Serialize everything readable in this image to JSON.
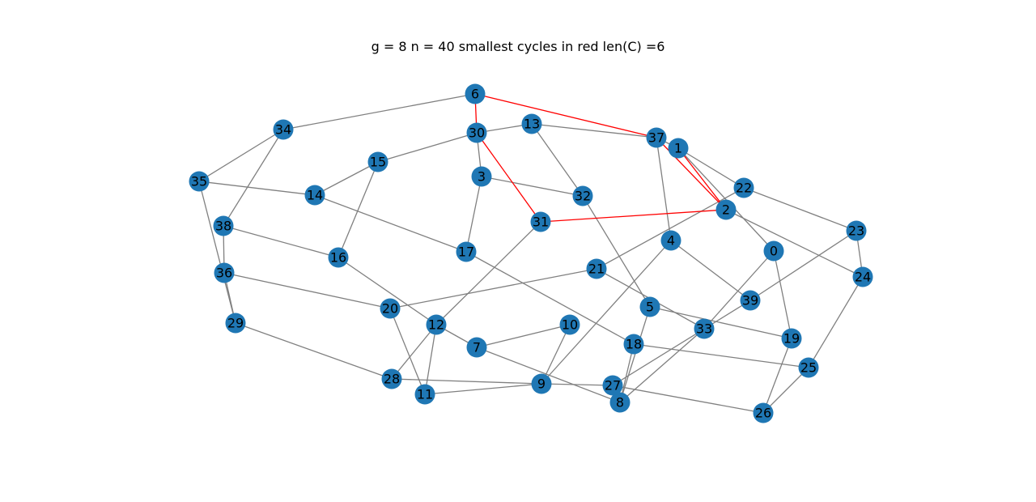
{
  "title": "g = 8 n = 40 smallest cycles in red len(C) =6",
  "colors": {
    "node": "#1f77b4",
    "edge": "#808080",
    "cycle_edge": "#ff0000",
    "label": "#000000"
  },
  "graph": {
    "nodes": [
      "0",
      "1",
      "2",
      "3",
      "4",
      "5",
      "6",
      "7",
      "8",
      "9",
      "10",
      "11",
      "12",
      "13",
      "14",
      "15",
      "16",
      "17",
      "18",
      "19",
      "20",
      "21",
      "22",
      "23",
      "24",
      "25",
      "26",
      "27",
      "28",
      "29",
      "30",
      "31",
      "32",
      "33",
      "34",
      "35",
      "36",
      "37",
      "38",
      "39"
    ],
    "edges": [
      [
        "6",
        "34"
      ],
      [
        "34",
        "35"
      ],
      [
        "34",
        "38"
      ],
      [
        "35",
        "14"
      ],
      [
        "35",
        "29"
      ],
      [
        "38",
        "36"
      ],
      [
        "38",
        "16"
      ],
      [
        "36",
        "29"
      ],
      [
        "36",
        "20"
      ],
      [
        "29",
        "28"
      ],
      [
        "14",
        "15"
      ],
      [
        "14",
        "17"
      ],
      [
        "15",
        "30"
      ],
      [
        "15",
        "16"
      ],
      [
        "16",
        "12"
      ],
      [
        "30",
        "13"
      ],
      [
        "30",
        "3"
      ],
      [
        "13",
        "37"
      ],
      [
        "13",
        "32"
      ],
      [
        "3",
        "32"
      ],
      [
        "3",
        "17"
      ],
      [
        "17",
        "18"
      ],
      [
        "31",
        "12"
      ],
      [
        "32",
        "5"
      ],
      [
        "37",
        "4"
      ],
      [
        "1",
        "22"
      ],
      [
        "1",
        "0"
      ],
      [
        "22",
        "23"
      ],
      [
        "22",
        "21"
      ],
      [
        "2",
        "24"
      ],
      [
        "4",
        "39"
      ],
      [
        "4",
        "9"
      ],
      [
        "21",
        "20"
      ],
      [
        "21",
        "33"
      ],
      [
        "0",
        "33"
      ],
      [
        "0",
        "19"
      ],
      [
        "23",
        "39"
      ],
      [
        "23",
        "24"
      ],
      [
        "24",
        "25"
      ],
      [
        "39",
        "27"
      ],
      [
        "5",
        "19"
      ],
      [
        "5",
        "8"
      ],
      [
        "10",
        "7"
      ],
      [
        "10",
        "9"
      ],
      [
        "12",
        "7"
      ],
      [
        "12",
        "11"
      ],
      [
        "20",
        "11"
      ],
      [
        "28",
        "12"
      ],
      [
        "28",
        "9"
      ],
      [
        "11",
        "9"
      ],
      [
        "7",
        "8"
      ],
      [
        "18",
        "8"
      ],
      [
        "18",
        "25"
      ],
      [
        "9",
        "27"
      ],
      [
        "27",
        "26"
      ],
      [
        "33",
        "8"
      ],
      [
        "19",
        "26"
      ],
      [
        "25",
        "26"
      ],
      [
        "37",
        "1"
      ]
    ],
    "cycle_edges": [
      [
        "6",
        "37"
      ],
      [
        "37",
        "2"
      ],
      [
        "1",
        "2"
      ],
      [
        "2",
        "31"
      ],
      [
        "31",
        "30"
      ],
      [
        "30",
        "6"
      ]
    ]
  }
}
